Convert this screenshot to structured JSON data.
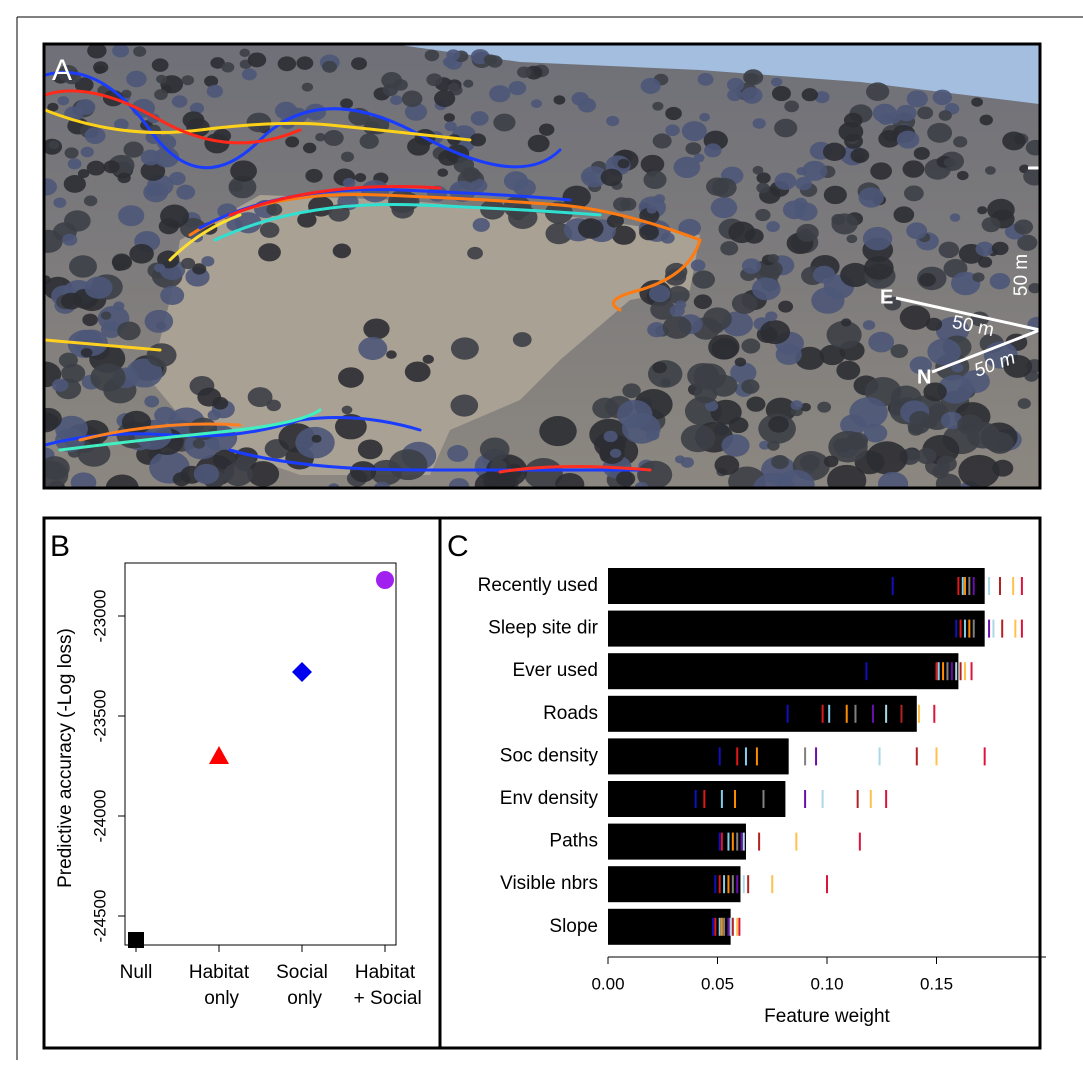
{
  "panel_a": {
    "label": "A",
    "compass": {
      "east": "E",
      "north": "N"
    },
    "scale_labels": [
      "50 m",
      "50 m",
      "50 m"
    ]
  },
  "chart_data": [
    {
      "type": "scatter",
      "panel_label": "B",
      "ylabel": "Predictive accuracy (-Log loss)",
      "categories": [
        "Null",
        "Habitat only",
        "Social only",
        "Habitat + Social"
      ],
      "values": [
        -24620,
        -23700,
        -23280,
        -22820
      ],
      "colors": [
        "#000000",
        "#ff0000",
        "#0000ee",
        "#a020f0"
      ],
      "markers": [
        "square",
        "triangle",
        "diamond",
        "circle"
      ],
      "ylim": [
        -24645,
        -22735
      ],
      "yticks": [
        -24500,
        -24000,
        -23500,
        -23000
      ]
    },
    {
      "type": "bar",
      "orientation": "horizontal",
      "panel_label": "C",
      "xlabel": "Feature weight",
      "categories": [
        "Recently used",
        "Sleep site dir",
        "Ever used",
        "Roads",
        "Soc density",
        "Env density",
        "Paths",
        "Visible nbrs",
        "Slope"
      ],
      "values": [
        0.172,
        0.172,
        0.16,
        0.141,
        0.0825,
        0.081,
        0.063,
        0.0605,
        0.056
      ],
      "color": "#000000",
      "xlim": [
        0,
        0.2
      ],
      "xticks": [
        {
          "value": 0,
          "label": "0.00"
        },
        {
          "value": 0.05,
          "label": "0.05"
        },
        {
          "value": 0.1,
          "label": "0.10"
        },
        {
          "value": 0.15,
          "label": "0.15"
        }
      ],
      "replicate_colors": [
        "#1010c0",
        "#e01818",
        "#87ceeb",
        "#ff8c00",
        "#808080",
        "#6a0dad",
        "#add8e6",
        "#b22222",
        "#ffc04d",
        "#dc143c"
      ],
      "replicates": [
        [
          0.13,
          0.16,
          0.162,
          0.163,
          0.165,
          0.167,
          0.174,
          0.179,
          0.185,
          0.189
        ],
        [
          0.159,
          0.161,
          0.163,
          0.165,
          0.167,
          0.174,
          0.176,
          0.18,
          0.186,
          0.189
        ],
        [
          0.118,
          0.15,
          0.151,
          0.153,
          0.155,
          0.157,
          0.159,
          0.161,
          0.163,
          0.166
        ],
        [
          0.082,
          0.098,
          0.101,
          0.109,
          0.113,
          0.121,
          0.127,
          0.134,
          0.142,
          0.149
        ],
        [
          0.051,
          0.059,
          0.063,
          0.068,
          0.09,
          0.095,
          0.124,
          0.141,
          0.15,
          0.172
        ],
        [
          0.04,
          0.044,
          0.052,
          0.058,
          0.071,
          0.09,
          0.098,
          0.114,
          0.12,
          0.127
        ],
        [
          0.051,
          0.052,
          0.055,
          0.057,
          0.059,
          0.061,
          0.062,
          0.069,
          0.086,
          0.115
        ],
        [
          0.049,
          0.051,
          0.053,
          0.055,
          0.057,
          0.059,
          0.062,
          0.064,
          0.075,
          0.1
        ],
        [
          0.048,
          0.049,
          0.051,
          0.052,
          0.053,
          0.055,
          0.056,
          0.057,
          0.059,
          0.06
        ]
      ]
    }
  ]
}
